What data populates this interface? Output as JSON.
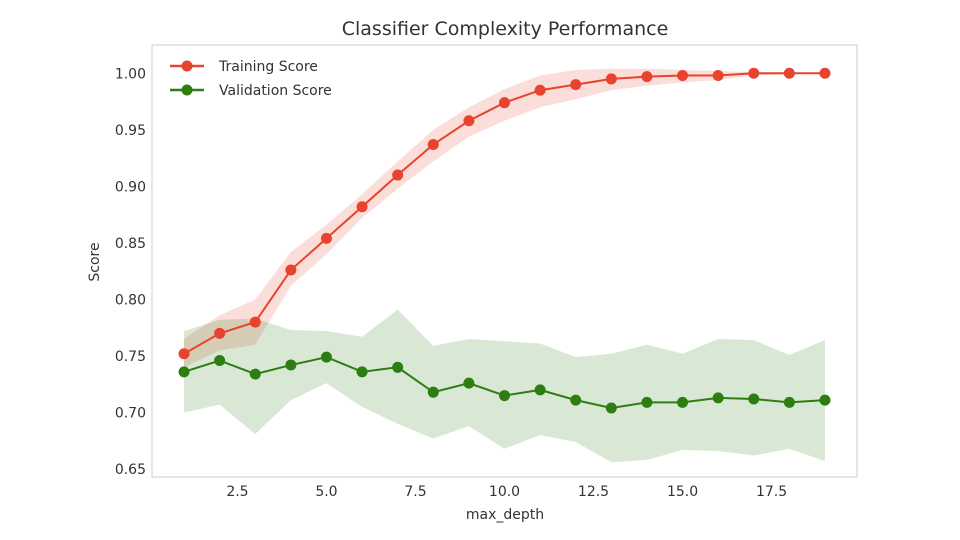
{
  "chart_data": {
    "type": "line",
    "title": "Classifier Complexity Performance",
    "xlabel": "max_depth",
    "ylabel": "Score",
    "xlim": [
      0.1,
      19.9
    ],
    "ylim": [
      0.643,
      1.025
    ],
    "xticks": [
      2.5,
      5.0,
      7.5,
      10.0,
      12.5,
      15.0,
      17.5
    ],
    "xtick_labels": [
      "2.5",
      "5.0",
      "7.5",
      "10.0",
      "12.5",
      "15.0",
      "17.5"
    ],
    "yticks": [
      0.65,
      0.7,
      0.75,
      0.8,
      0.85,
      0.9,
      0.95,
      1.0
    ],
    "ytick_labels": [
      "0.65",
      "0.70",
      "0.75",
      "0.80",
      "0.85",
      "0.90",
      "0.95",
      "1.00"
    ],
    "grid": false,
    "legend_position": "top-left",
    "x": [
      1,
      2,
      3,
      4,
      5,
      6,
      7,
      8,
      9,
      10,
      11,
      12,
      13,
      14,
      15,
      16,
      17,
      18,
      19
    ],
    "series": [
      {
        "name": "Training Score",
        "color": "#e8432f",
        "values": [
          0.752,
          0.77,
          0.78,
          0.826,
          0.854,
          0.882,
          0.91,
          0.937,
          0.958,
          0.974,
          0.985,
          0.99,
          0.995,
          0.997,
          0.998,
          0.998,
          1.0,
          1.0,
          1.0
        ],
        "band_lower": [
          0.74,
          0.755,
          0.76,
          0.812,
          0.84,
          0.872,
          0.898,
          0.922,
          0.944,
          0.958,
          0.97,
          0.977,
          0.985,
          0.989,
          0.992,
          0.994,
          0.998,
          0.999,
          1.0
        ],
        "band_upper": [
          0.765,
          0.786,
          0.8,
          0.842,
          0.866,
          0.893,
          0.922,
          0.95,
          0.97,
          0.986,
          0.998,
          1.003,
          1.004,
          1.004,
          1.003,
          1.002,
          1.001,
          1.0,
          1.0
        ]
      },
      {
        "name": "Validation Score",
        "color": "#2e7d12",
        "values": [
          0.736,
          0.746,
          0.734,
          0.742,
          0.749,
          0.736,
          0.74,
          0.718,
          0.726,
          0.715,
          0.72,
          0.711,
          0.704,
          0.709,
          0.709,
          0.713,
          0.712,
          0.709,
          0.711
        ],
        "band_lower": [
          0.7,
          0.707,
          0.681,
          0.711,
          0.726,
          0.705,
          0.69,
          0.677,
          0.688,
          0.668,
          0.68,
          0.674,
          0.656,
          0.658,
          0.667,
          0.666,
          0.662,
          0.668,
          0.657
        ],
        "band_upper": [
          0.772,
          0.782,
          0.783,
          0.773,
          0.772,
          0.767,
          0.791,
          0.759,
          0.765,
          0.763,
          0.761,
          0.749,
          0.752,
          0.76,
          0.752,
          0.765,
          0.764,
          0.751,
          0.764
        ]
      }
    ]
  }
}
